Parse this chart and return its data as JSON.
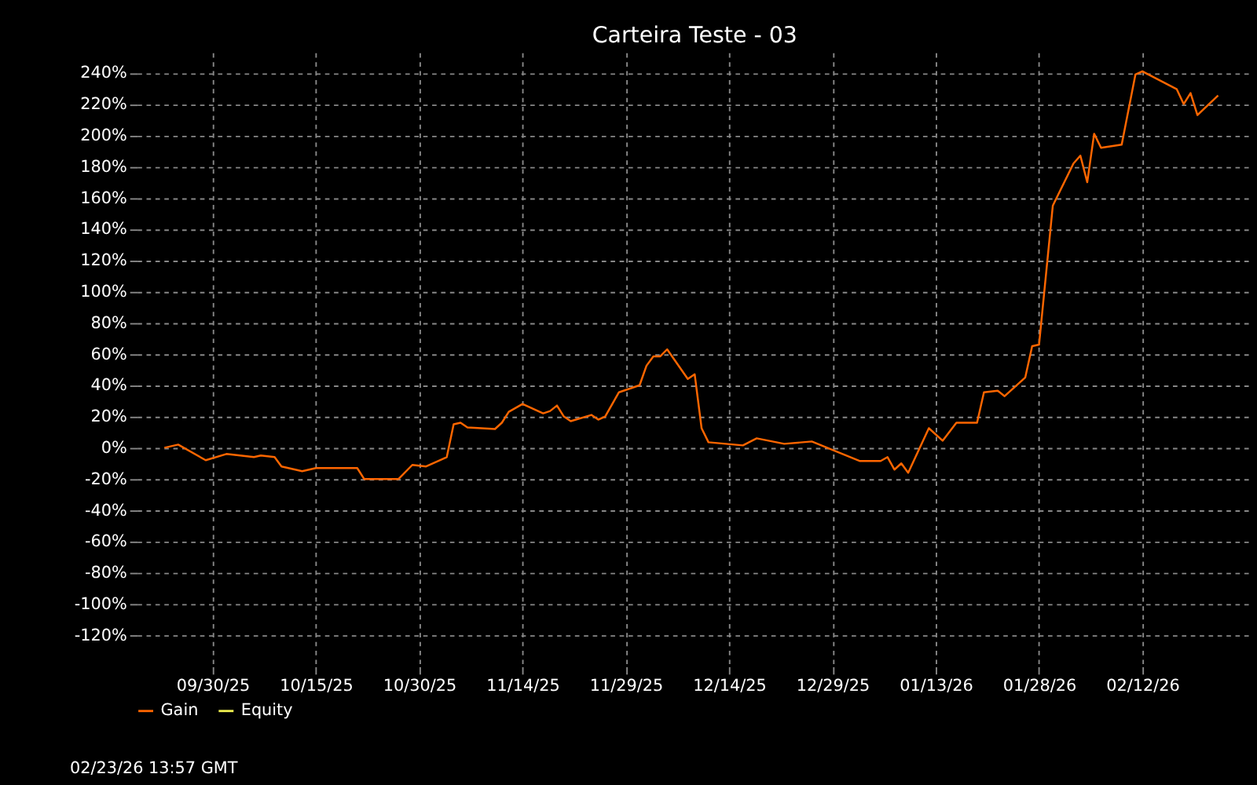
{
  "chart_data": {
    "type": "line",
    "title": "Carteira Teste - 03",
    "x": [
      "2025-09-23",
      "2025-09-25",
      "2025-09-29",
      "2025-10-02",
      "2025-10-06",
      "2025-10-07",
      "2025-10-09",
      "2025-10-10",
      "2025-10-13",
      "2025-10-15",
      "2025-10-21",
      "2025-10-22",
      "2025-10-27",
      "2025-10-29",
      "2025-10-31",
      "2025-11-03",
      "2025-11-04",
      "2025-11-05",
      "2025-11-06",
      "2025-11-10",
      "2025-11-11",
      "2025-11-12",
      "2025-11-14",
      "2025-11-17",
      "2025-11-18",
      "2025-11-19",
      "2025-11-20",
      "2025-11-21",
      "2025-11-24",
      "2025-11-25",
      "2025-11-26",
      "2025-11-28",
      "2025-11-29",
      "2025-12-01",
      "2025-12-02",
      "2025-12-03",
      "2025-12-04",
      "2025-12-05",
      "2025-12-08",
      "2025-12-09",
      "2025-12-10",
      "2025-12-11",
      "2025-12-16",
      "2025-12-18",
      "2025-12-22",
      "2025-12-26",
      "2026-01-02",
      "2026-01-05",
      "2026-01-06",
      "2026-01-07",
      "2026-01-08",
      "2026-01-09",
      "2026-01-12",
      "2026-01-14",
      "2026-01-16",
      "2026-01-19",
      "2026-01-20",
      "2026-01-22",
      "2026-01-23",
      "2026-01-26",
      "2026-01-27",
      "2026-01-28",
      "2026-01-30",
      "2026-02-02",
      "2026-02-03",
      "2026-02-04",
      "2026-02-05",
      "2026-02-06",
      "2026-02-09",
      "2026-02-11",
      "2026-02-12",
      "2026-02-17",
      "2026-02-18",
      "2026-02-19",
      "2026-02-20",
      "2026-02-23"
    ],
    "series": [
      {
        "name": "Gain",
        "color": "#ff6600",
        "values": [
          0,
          2,
          -8,
          -4,
          -6,
          -5,
          -6,
          -12,
          -15,
          -13,
          -13,
          -20,
          -20,
          -11,
          -12,
          -6,
          15,
          16,
          13,
          12,
          16,
          23,
          28,
          22,
          23.5,
          27,
          20,
          17,
          21,
          18,
          20,
          35.5,
          37,
          40,
          52.5,
          58.5,
          58.5,
          63,
          44,
          47,
          12.5,
          3.5,
          1.5,
          6,
          2.5,
          4,
          -8.5,
          -8.5,
          -6,
          -14,
          -10,
          -16,
          12.5,
          4.5,
          16,
          16,
          35.5,
          36.5,
          33,
          45,
          65,
          66,
          155,
          182,
          187,
          170,
          201,
          192,
          194,
          239,
          241,
          229.5,
          220,
          227,
          213,
          225.5
        ]
      },
      {
        "name": "Equity",
        "color": "#f0f050",
        "values": [
          null,
          null,
          null,
          null,
          null,
          null,
          null,
          null,
          null,
          null,
          null,
          null,
          null,
          null,
          null,
          null,
          null,
          null,
          null,
          null,
          null,
          null,
          null,
          null,
          null,
          null,
          null,
          null,
          null,
          null,
          null,
          null,
          null,
          null,
          null,
          null,
          null,
          null,
          null,
          null,
          null,
          null,
          null,
          null,
          null,
          null,
          null,
          null,
          null,
          null,
          null,
          null,
          null,
          null,
          null,
          null,
          null,
          null,
          null,
          null,
          null,
          null,
          null,
          null,
          null,
          null,
          null,
          null,
          null,
          null,
          null,
          null,
          null,
          null,
          null,
          null
        ]
      }
    ],
    "xlim": [
      "2025-09-19",
      "2026-02-28"
    ],
    "xticks": [
      {
        "value": "2025-09-30",
        "label": "09/30/25"
      },
      {
        "value": "2025-10-15",
        "label": "10/15/25"
      },
      {
        "value": "2025-10-30",
        "label": "10/30/25"
      },
      {
        "value": "2025-11-14",
        "label": "11/14/25"
      },
      {
        "value": "2025-11-29",
        "label": "11/29/25"
      },
      {
        "value": "2025-12-14",
        "label": "12/14/25"
      },
      {
        "value": "2025-12-29",
        "label": "12/29/25"
      },
      {
        "value": "2026-01-13",
        "label": "01/13/26"
      },
      {
        "value": "2026-01-28",
        "label": "01/28/26"
      },
      {
        "value": "2026-02-12",
        "label": "02/12/26"
      }
    ],
    "ylim": [
      -140,
      253
    ],
    "yticks": [
      {
        "value": -120,
        "label": "-120%"
      },
      {
        "value": -100,
        "label": "-100%"
      },
      {
        "value": -80,
        "label": "-80%"
      },
      {
        "value": -60,
        "label": "-60%"
      },
      {
        "value": -40,
        "label": "-40%"
      },
      {
        "value": -20,
        "label": "-20%"
      },
      {
        "value": 0,
        "label": "0%"
      },
      {
        "value": 20,
        "label": "20%"
      },
      {
        "value": 40,
        "label": "40%"
      },
      {
        "value": 60,
        "label": "60%"
      },
      {
        "value": 80,
        "label": "80%"
      },
      {
        "value": 100,
        "label": "100%"
      },
      {
        "value": 120,
        "label": "120%"
      },
      {
        "value": 140,
        "label": "140%"
      },
      {
        "value": 160,
        "label": "160%"
      },
      {
        "value": 180,
        "label": "180%"
      },
      {
        "value": 200,
        "label": "200%"
      },
      {
        "value": 220,
        "label": "220%"
      },
      {
        "value": 240,
        "label": "240%"
      }
    ],
    "grid": true,
    "legend": "bottom",
    "line_style": "solid",
    "marker": "none",
    "annotations": [
      "02/23/26 13:57 GMT"
    ]
  }
}
